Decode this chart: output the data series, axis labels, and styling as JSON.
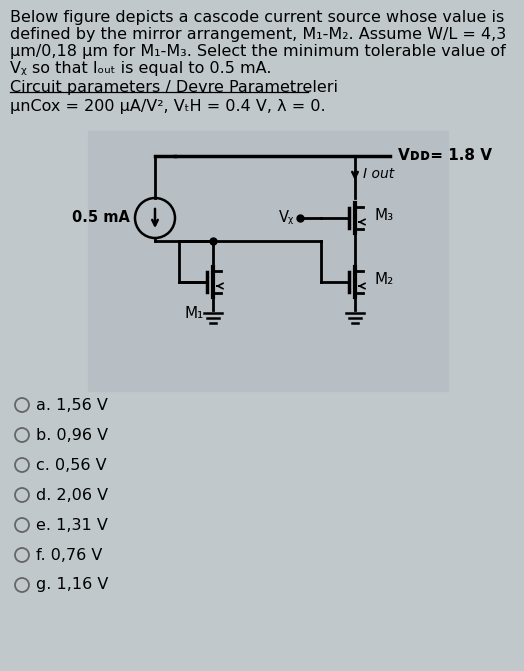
{
  "bg_color": "#c0c8cc",
  "line1": "Below figure depicts a cascode current source whose value is",
  "line2": "defined by the mirror arrangement, M₁-M₂. Assume W/L = 4,3",
  "line3": "μm/0,18 μm for M₁-M₃. Select the minimum tolerable value of",
  "line4": "Vᵪ so that Iₒᵤₜ is equal to 0.5 mA.",
  "param_label": "Circuit parameters / Devre Parametreleri",
  "param_text": "μnCox = 200 μA/V², VₜH = 0.4 V, λ = 0.",
  "vdd_text": "Vᴅᴅ= 1.8 V",
  "iout_text": "I out",
  "cs_label": "0.5 mA",
  "vb_text": "Vᵪ",
  "m1_text": "M₁",
  "m2_text": "M₂",
  "m3_text": "M₃",
  "answers": [
    "a. 1,56 V",
    "b. 0,96 V",
    "c. 0,56 V",
    "d. 2,06 V",
    "e. 1,31 V",
    "f. 0,76 V",
    "g. 1,16 V"
  ]
}
